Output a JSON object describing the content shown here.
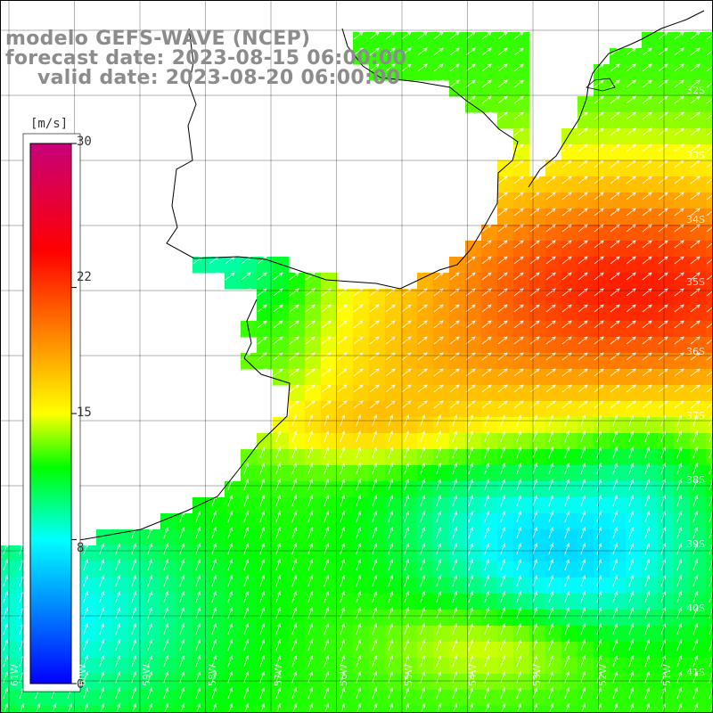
{
  "title": {
    "model": "modelo GEFS-WAVE (NCEP)",
    "forecast": "forecast date: 2023-08-15 06:00:00",
    "valid": "valid date: 2023-08-20 06:00:00"
  },
  "colorbar": {
    "unit": "[m/s]",
    "min": 0,
    "max": 30,
    "ticks": [
      "30",
      "22",
      "15",
      "8",
      "0"
    ],
    "colors": [
      "#0000ff",
      "#00ffff",
      "#00ff00",
      "#ffff00",
      "#ff8000",
      "#ff0000",
      "#c8007a"
    ]
  },
  "lat_labels": [
    "32S",
    "33S",
    "34S",
    "35S",
    "36S",
    "37S",
    "38S",
    "39S",
    "40S",
    "41S"
  ],
  "lon_labels": [
    "61W",
    "60W",
    "59W",
    "58W",
    "57W",
    "56W",
    "55W",
    "54W",
    "53W",
    "52W",
    "51W"
  ],
  "colors": {
    "land": "#ffffff",
    "coast": "#000000",
    "grid": "#000000",
    "arrows": "#ffffff"
  }
}
